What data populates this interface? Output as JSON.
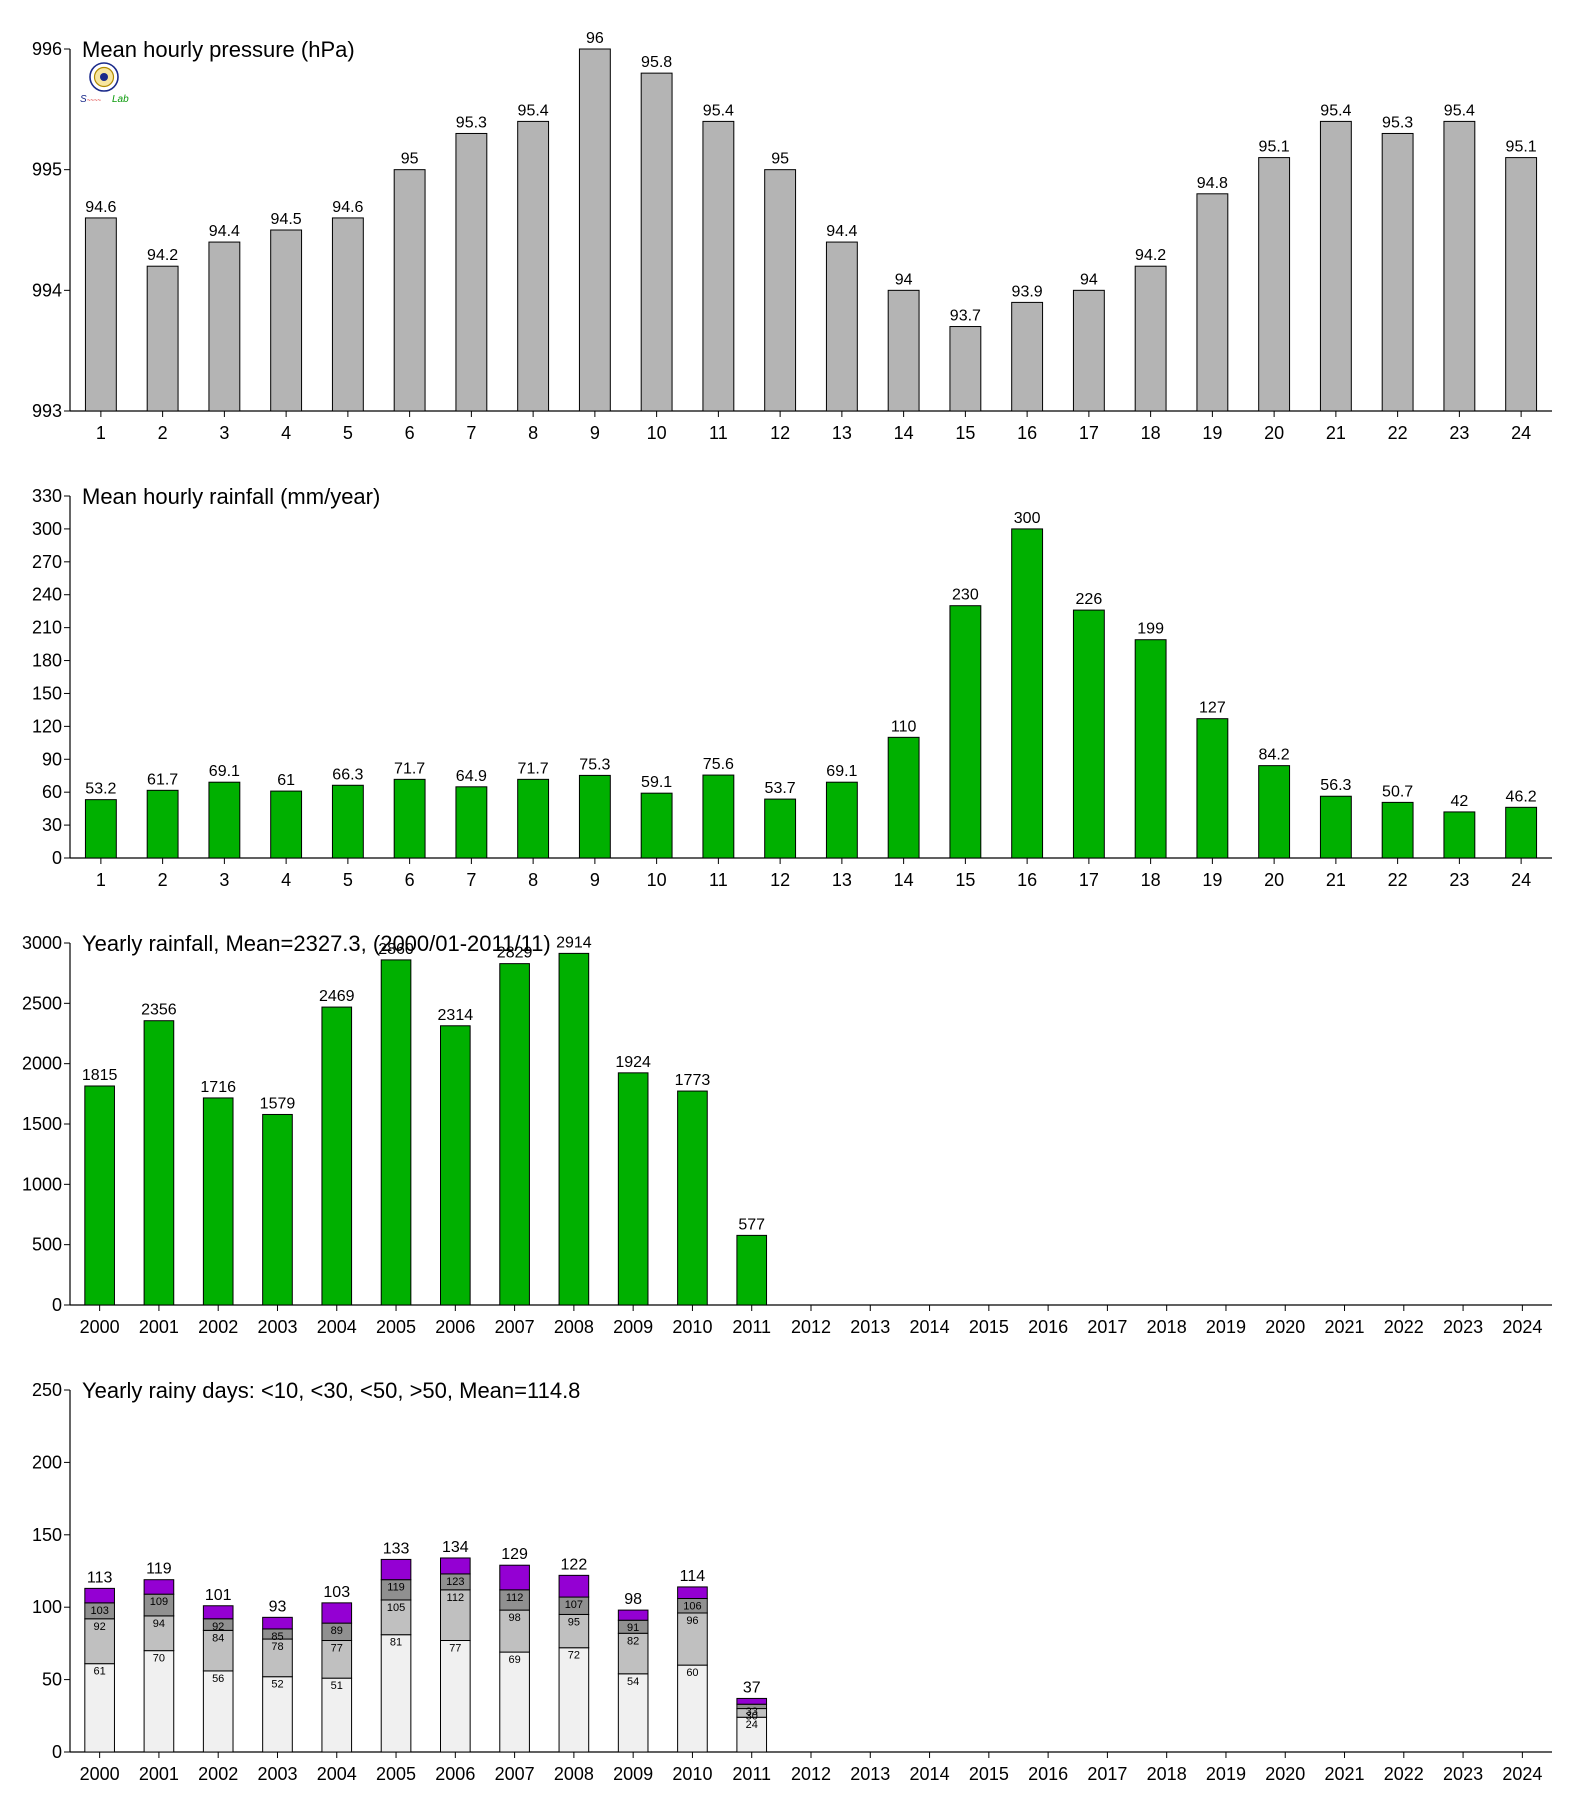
{
  "colors": {
    "pressure": "#b4b4b4",
    "rain": "#00b000",
    "days_lt10": "#f0f0f0",
    "days_lt30": "#c0c0c0",
    "days_lt50": "#909090",
    "days_gt50": "#9400d3",
    "axis": "#000000"
  },
  "logo": {
    "icon": "lab-seal-logo",
    "text": "Lab"
  },
  "chart_data": [
    {
      "id": "pressure",
      "type": "bar",
      "title": "Mean hourly pressure (hPa)",
      "categories": [
        "1",
        "2",
        "3",
        "4",
        "5",
        "6",
        "7",
        "8",
        "9",
        "10",
        "11",
        "12",
        "13",
        "14",
        "15",
        "16",
        "17",
        "18",
        "19",
        "20",
        "21",
        "22",
        "23",
        "24"
      ],
      "values": [
        994.6,
        994.2,
        994.4,
        994.5,
        994.6,
        995,
        995.3,
        995.4,
        996,
        995.8,
        995.4,
        995,
        994.4,
        994,
        993.7,
        993.9,
        994,
        994.2,
        994.8,
        995.1,
        995.4,
        995.3,
        995.4,
        995.1
      ],
      "value_labels": [
        "94.6",
        "94.2",
        "94.4",
        "94.5",
        "94.6",
        "95",
        "95.3",
        "95.4",
        "96",
        "95.8",
        "95.4",
        "95",
        "94.4",
        "94",
        "93.7",
        "93.9",
        "94",
        "94.2",
        "94.8",
        "95.1",
        "95.4",
        "95.3",
        "95.4",
        "95.1"
      ],
      "ylim": [
        993,
        996
      ],
      "yticks": [
        993,
        994,
        995,
        996
      ],
      "grid": false
    },
    {
      "id": "hourly_rain",
      "type": "bar",
      "title": "Mean hourly rainfall (mm/year)",
      "categories": [
        "1",
        "2",
        "3",
        "4",
        "5",
        "6",
        "7",
        "8",
        "9",
        "10",
        "11",
        "12",
        "13",
        "14",
        "15",
        "16",
        "17",
        "18",
        "19",
        "20",
        "21",
        "22",
        "23",
        "24"
      ],
      "values": [
        53.2,
        61.7,
        69.1,
        61,
        66.3,
        71.7,
        64.9,
        71.7,
        75.3,
        59.1,
        75.6,
        53.7,
        69.1,
        110,
        230,
        300,
        226,
        199,
        127,
        84.2,
        56.3,
        50.7,
        42,
        46.2
      ],
      "value_labels": [
        "53.2",
        "61.7",
        "69.1",
        "61",
        "66.3",
        "71.7",
        "64.9",
        "71.7",
        "75.3",
        "59.1",
        "75.6",
        "53.7",
        "69.1",
        "110",
        "230",
        "300",
        "226",
        "199",
        "127",
        "84.2",
        "56.3",
        "50.7",
        "42",
        "46.2"
      ],
      "ylim": [
        0,
        330
      ],
      "yticks": [
        0,
        30,
        60,
        90,
        120,
        150,
        180,
        210,
        240,
        270,
        300,
        330
      ],
      "grid": false
    },
    {
      "id": "yearly_rain",
      "type": "bar",
      "title": "Yearly rainfall, Mean=2327.3, (2000/01-2011/11)",
      "categories": [
        "2000",
        "2001",
        "2002",
        "2003",
        "2004",
        "2005",
        "2006",
        "2007",
        "2008",
        "2009",
        "2010",
        "2011",
        "2012",
        "2013",
        "2014",
        "2015",
        "2016",
        "2017",
        "2018",
        "2019",
        "2020",
        "2021",
        "2022",
        "2023",
        "2024"
      ],
      "values": [
        1815,
        2356,
        1716,
        1579,
        2469,
        2860,
        2314,
        2829,
        2914,
        1924,
        1773,
        577,
        null,
        null,
        null,
        null,
        null,
        null,
        null,
        null,
        null,
        null,
        null,
        null,
        null
      ],
      "ylim": [
        0,
        3000
      ],
      "yticks": [
        0,
        500,
        1000,
        1500,
        2000,
        2500,
        3000
      ],
      "grid": false
    },
    {
      "id": "rainy_days",
      "type": "bar",
      "stacked": true,
      "title": "Yearly rainy days: <10, <30, <50, >50, Mean=114.8",
      "categories": [
        "2000",
        "2001",
        "2002",
        "2003",
        "2004",
        "2005",
        "2006",
        "2007",
        "2008",
        "2009",
        "2010",
        "2011",
        "2012",
        "2013",
        "2014",
        "2015",
        "2016",
        "2017",
        "2018",
        "2019",
        "2020",
        "2021",
        "2022",
        "2023",
        "2024"
      ],
      "cumulative_series": [
        {
          "name": "<10",
          "values": [
            61,
            70,
            56,
            52,
            51,
            81,
            77,
            69,
            72,
            54,
            60,
            24
          ]
        },
        {
          "name": "<30",
          "values": [
            92,
            94,
            84,
            78,
            77,
            105,
            112,
            98,
            95,
            82,
            96,
            30
          ]
        },
        {
          "name": "<50",
          "values": [
            103,
            109,
            92,
            85,
            89,
            119,
            123,
            112,
            107,
            91,
            106,
            33
          ]
        },
        {
          "name": ">50",
          "values": [
            113,
            119,
            101,
            93,
            103,
            133,
            134,
            129,
            122,
            98,
            114,
            37
          ]
        }
      ],
      "ylim": [
        0,
        250
      ],
      "yticks": [
        0,
        50,
        100,
        150,
        200,
        250
      ],
      "grid": false
    }
  ]
}
